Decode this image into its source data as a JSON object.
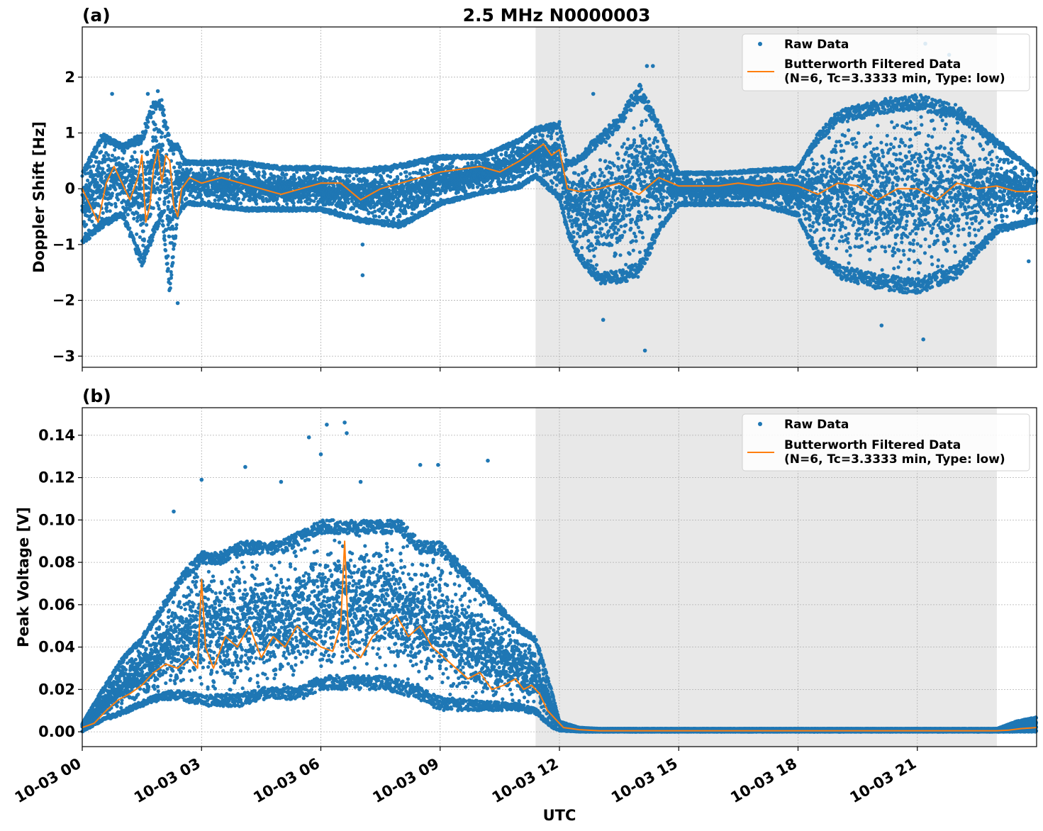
{
  "title": "2.5 MHz N0000003",
  "colors": {
    "raw": "#1f77b4",
    "filtered": "#ff7f0e",
    "night_shade": "#e8e8e8",
    "grid": "#b0b0b0"
  },
  "legend": {
    "raw_label": "Raw Data",
    "filtered_label_line1": "Butterworth Filtered Data",
    "filtered_label_line2": "(N=6, Tc=3.3333 min, Type: low)"
  },
  "chart_data": [
    {
      "type": "scatter",
      "panel_tag": "(a)",
      "title": "2.5 MHz N0000003",
      "xlabel": "",
      "ylabel": "Doppler Shift [Hz]",
      "x_unit": "hours UTC on 10-03",
      "xlim": [
        0,
        24
      ],
      "ylim": [
        -3.2,
        2.9
      ],
      "yticks": [
        -3,
        -2,
        -1,
        0,
        1,
        2
      ],
      "ytick_labels": [
        "−3",
        "−2",
        "−1",
        "0",
        "1",
        "2"
      ],
      "xticks": [
        0,
        3,
        6,
        9,
        12,
        15,
        18,
        21
      ],
      "shaded_region": [
        11.4,
        23.0
      ],
      "grid": true,
      "legend_position": "top-right",
      "series": [
        {
          "name": "Raw Data",
          "style": "points",
          "envelope": {
            "x": [
              0,
              0.5,
              1.0,
              1.5,
              1.8,
              2.0,
              2.2,
              2.4,
              2.6,
              3.0,
              4.0,
              5.0,
              6.0,
              7.0,
              8.0,
              9.0,
              10.0,
              11.0,
              11.4,
              12.0,
              12.2,
              12.5,
              13.0,
              13.5,
              14.0,
              14.5,
              15.0,
              16.0,
              17.0,
              18.0,
              18.5,
              19.0,
              20.0,
              21.0,
              22.0,
              23.0,
              24.0
            ],
            "upper": [
              0.3,
              1.0,
              0.8,
              1.0,
              1.6,
              1.6,
              0.9,
              0.8,
              0.5,
              0.5,
              0.5,
              0.4,
              0.4,
              0.35,
              0.45,
              0.6,
              0.6,
              0.9,
              1.1,
              1.2,
              0.5,
              0.6,
              1.0,
              1.3,
              1.9,
              1.2,
              0.3,
              0.3,
              0.35,
              0.4,
              1.0,
              1.4,
              1.6,
              1.7,
              1.5,
              0.9,
              0.3
            ],
            "lower": [
              -1.0,
              -0.7,
              -0.5,
              -1.4,
              -0.9,
              -0.5,
              -1.9,
              -0.5,
              -0.3,
              -0.3,
              -0.4,
              -0.4,
              -0.4,
              -0.6,
              -0.7,
              -0.3,
              -0.1,
              0.0,
              0.2,
              -0.2,
              -0.8,
              -1.3,
              -1.7,
              -1.7,
              -1.6,
              -0.8,
              -0.3,
              -0.3,
              -0.3,
              -0.5,
              -1.3,
              -1.6,
              -1.8,
              -1.9,
              -1.6,
              -0.8,
              -0.6
            ]
          },
          "outliers": [
            {
              "x": 0.75,
              "y": 1.7
            },
            {
              "x": 1.65,
              "y": 1.7
            },
            {
              "x": 1.9,
              "y": 1.75
            },
            {
              "x": 2.4,
              "y": -2.05
            },
            {
              "x": 7.05,
              "y": -1.55
            },
            {
              "x": 7.05,
              "y": -1.0
            },
            {
              "x": 12.85,
              "y": 1.7
            },
            {
              "x": 13.1,
              "y": -2.35
            },
            {
              "x": 14.15,
              "y": -2.9
            },
            {
              "x": 14.2,
              "y": 2.2
            },
            {
              "x": 14.35,
              "y": 2.2
            },
            {
              "x": 20.1,
              "y": -2.45
            },
            {
              "x": 21.15,
              "y": -2.7
            },
            {
              "x": 21.2,
              "y": 2.6
            },
            {
              "x": 21.8,
              "y": 2.4
            },
            {
              "x": 23.8,
              "y": -1.3
            }
          ]
        },
        {
          "name": "Butterworth Filtered Data\n(N=6, Tc=3.3333 min, Type: low)",
          "style": "line",
          "x": [
            0,
            0.2,
            0.4,
            0.6,
            0.8,
            1.0,
            1.2,
            1.4,
            1.5,
            1.6,
            1.7,
            1.8,
            1.9,
            2.0,
            2.1,
            2.2,
            2.3,
            2.4,
            2.5,
            2.7,
            3.0,
            3.5,
            4.0,
            4.5,
            5.0,
            5.5,
            6.0,
            6.5,
            7.0,
            7.5,
            8.0,
            8.5,
            9.0,
            9.5,
            10.0,
            10.5,
            11.0,
            11.2,
            11.4,
            11.6,
            11.8,
            12.0,
            12.2,
            12.5,
            13.0,
            13.5,
            14.0,
            14.5,
            15.0,
            15.5,
            16.0,
            16.5,
            17.0,
            17.5,
            18.0,
            18.5,
            19.0,
            19.5,
            20.0,
            20.5,
            21.0,
            21.5,
            22.0,
            22.5,
            23.0,
            23.5,
            24.0
          ],
          "y": [
            0.0,
            -0.3,
            -0.6,
            0.1,
            0.4,
            0.1,
            -0.2,
            0.2,
            0.6,
            -0.6,
            -0.3,
            0.4,
            0.7,
            0.1,
            0.6,
            0.5,
            -0.3,
            -0.5,
            0.0,
            0.2,
            0.1,
            0.2,
            0.1,
            0.0,
            -0.1,
            0.0,
            0.1,
            0.1,
            -0.2,
            0.0,
            0.1,
            0.2,
            0.3,
            0.35,
            0.4,
            0.3,
            0.5,
            0.6,
            0.7,
            0.8,
            0.6,
            0.7,
            0.0,
            -0.05,
            0.0,
            0.1,
            -0.1,
            0.2,
            0.05,
            0.05,
            0.05,
            0.1,
            0.05,
            0.1,
            0.05,
            -0.1,
            0.1,
            0.05,
            -0.2,
            0.0,
            0.0,
            -0.2,
            0.1,
            0.0,
            0.05,
            -0.05,
            -0.05
          ]
        }
      ]
    },
    {
      "type": "scatter",
      "panel_tag": "(b)",
      "title": "",
      "xlabel": "UTC",
      "ylabel": "Peak Voltage [V]",
      "x_unit": "hours UTC on 10-03",
      "xlim": [
        0,
        24
      ],
      "ylim": [
        -0.007,
        0.153
      ],
      "yticks": [
        0.0,
        0.02,
        0.04,
        0.06,
        0.08,
        0.1,
        0.12,
        0.14
      ],
      "ytick_labels": [
        "0.00",
        "0.02",
        "0.04",
        "0.06",
        "0.08",
        "0.10",
        "0.12",
        "0.14"
      ],
      "xticks": [
        0,
        3,
        6,
        9,
        12,
        15,
        18,
        21
      ],
      "xtick_labels": [
        "10-03 00",
        "10-03 03",
        "10-03 06",
        "10-03 09",
        "10-03 12",
        "10-03 15",
        "10-03 18",
        "10-03 21"
      ],
      "shaded_region": [
        11.4,
        23.0
      ],
      "grid": true,
      "legend_position": "top-right",
      "series": [
        {
          "name": "Raw Data",
          "style": "points",
          "envelope": {
            "x": [
              0,
              0.5,
              1.0,
              1.5,
              2.0,
              2.5,
              3.0,
              3.5,
              4.0,
              4.5,
              5.0,
              5.5,
              6.0,
              6.5,
              7.0,
              7.5,
              8.0,
              8.5,
              9.0,
              9.5,
              10.0,
              10.5,
              11.0,
              11.4,
              11.8,
              12.0,
              12.5,
              13.0,
              18.0,
              23.0,
              23.5,
              24.0
            ],
            "upper": [
              0.004,
              0.02,
              0.035,
              0.045,
              0.06,
              0.075,
              0.085,
              0.085,
              0.09,
              0.09,
              0.09,
              0.095,
              0.1,
              0.1,
              0.1,
              0.1,
              0.1,
              0.09,
              0.09,
              0.08,
              0.07,
              0.06,
              0.05,
              0.045,
              0.02,
              0.005,
              0.002,
              0.0015,
              0.0015,
              0.0015,
              0.005,
              0.007
            ],
            "lower": [
              0.0,
              0.005,
              0.008,
              0.012,
              0.015,
              0.015,
              0.012,
              0.012,
              0.012,
              0.015,
              0.015,
              0.015,
              0.02,
              0.02,
              0.02,
              0.02,
              0.018,
              0.015,
              0.01,
              0.01,
              0.01,
              0.01,
              0.01,
              0.008,
              0.002,
              0.0005,
              0.0,
              0.0,
              0.0,
              0.0,
              0.0,
              0.0
            ]
          },
          "outliers": [
            {
              "x": 2.3,
              "y": 0.104
            },
            {
              "x": 3.0,
              "y": 0.119
            },
            {
              "x": 4.1,
              "y": 0.125
            },
            {
              "x": 5.0,
              "y": 0.118
            },
            {
              "x": 5.7,
              "y": 0.139
            },
            {
              "x": 6.0,
              "y": 0.131
            },
            {
              "x": 6.15,
              "y": 0.145
            },
            {
              "x": 6.6,
              "y": 0.146
            },
            {
              "x": 6.65,
              "y": 0.141
            },
            {
              "x": 7.0,
              "y": 0.118
            },
            {
              "x": 8.5,
              "y": 0.126
            },
            {
              "x": 8.95,
              "y": 0.126
            },
            {
              "x": 10.2,
              "y": 0.128
            }
          ]
        },
        {
          "name": "Butterworth Filtered Data\n(N=6, Tc=3.3333 min, Type: low)",
          "style": "line",
          "x": [
            0,
            0.3,
            0.6,
            0.9,
            1.2,
            1.5,
            1.8,
            2.1,
            2.4,
            2.7,
            2.9,
            3.0,
            3.1,
            3.3,
            3.6,
            3.9,
            4.2,
            4.5,
            4.8,
            5.1,
            5.4,
            5.7,
            6.0,
            6.3,
            6.5,
            6.6,
            6.7,
            7.0,
            7.3,
            7.6,
            7.9,
            8.2,
            8.5,
            8.8,
            9.1,
            9.4,
            9.7,
            10.0,
            10.3,
            10.6,
            10.9,
            11.1,
            11.3,
            11.5,
            11.7,
            11.9,
            12.1,
            12.5,
            13.0,
            23.0,
            23.3,
            23.6,
            24.0
          ],
          "y": [
            0.002,
            0.004,
            0.01,
            0.015,
            0.018,
            0.022,
            0.028,
            0.032,
            0.03,
            0.035,
            0.03,
            0.072,
            0.04,
            0.03,
            0.045,
            0.04,
            0.05,
            0.035,
            0.045,
            0.04,
            0.05,
            0.045,
            0.04,
            0.038,
            0.05,
            0.09,
            0.04,
            0.035,
            0.045,
            0.05,
            0.055,
            0.045,
            0.05,
            0.04,
            0.035,
            0.03,
            0.025,
            0.028,
            0.02,
            0.022,
            0.025,
            0.02,
            0.022,
            0.018,
            0.01,
            0.006,
            0.002,
            0.001,
            0.0005,
            0.0005,
            0.0008,
            0.0015,
            0.002
          ]
        }
      ]
    }
  ]
}
